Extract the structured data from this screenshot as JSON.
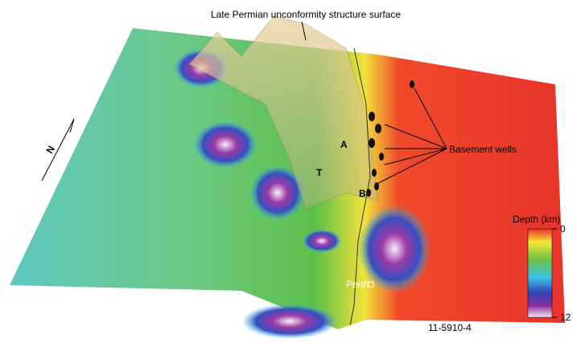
{
  "title": "Late Permian unconformity structure surface",
  "labels": {
    "a": "A",
    "t": "T",
    "b": "B",
    "wells": "Basement wells",
    "city": "Perth",
    "north": "N",
    "figure_id": "11-5910-4"
  },
  "colorbar": {
    "title": "Depth (km)",
    "ticks": [
      0,
      12
    ]
  }
}
